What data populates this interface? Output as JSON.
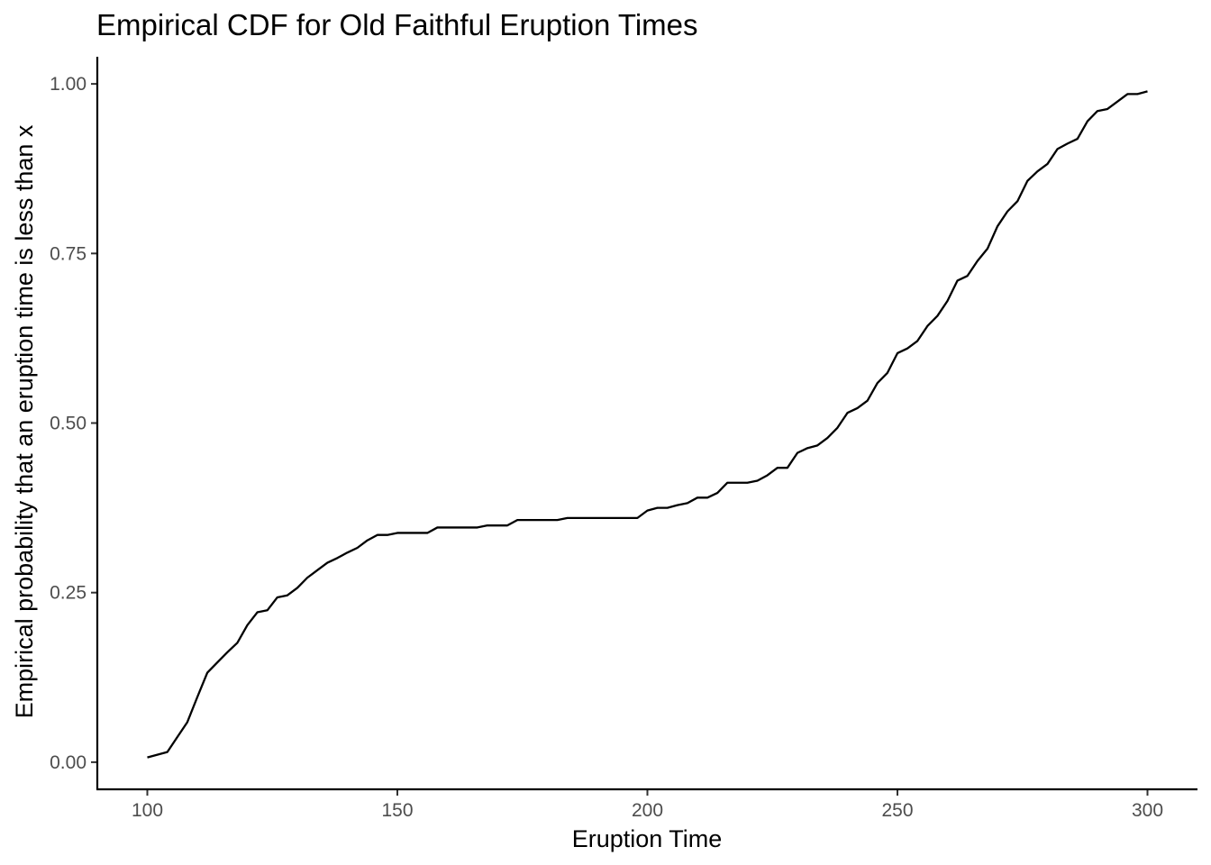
{
  "chart_data": {
    "type": "line",
    "title": "Empirical CDF for Old Faithful Eruption Times",
    "xlabel": "Eruption Time",
    "ylabel": "Empirical probability that an eruption time is less than x",
    "xlim": [
      90,
      310
    ],
    "ylim": [
      -0.04,
      1.04
    ],
    "x_ticks": [
      100,
      150,
      200,
      250,
      300
    ],
    "x_tick_labels": [
      "100",
      "150",
      "200",
      "250",
      "300"
    ],
    "y_ticks": [
      0,
      0.25,
      0.5,
      0.75,
      1
    ],
    "y_tick_labels": [
      "0.00",
      "0.25",
      "0.50",
      "0.75",
      "1.00"
    ],
    "grid": false,
    "line_color": "#000000",
    "series": [
      {
        "x": [
          100,
          104,
          106,
          108,
          110,
          112,
          114,
          116,
          118,
          120,
          122,
          124,
          126,
          128,
          130,
          132,
          134,
          136,
          138,
          140,
          142,
          144,
          146,
          148,
          150,
          152,
          154,
          156,
          158,
          160,
          162,
          164,
          166,
          168,
          170,
          172,
          174,
          176,
          178,
          180,
          182,
          184,
          186,
          188,
          190,
          192,
          194,
          196,
          198,
          200,
          202,
          204,
          206,
          208,
          210,
          212,
          214,
          216,
          218,
          220,
          222,
          224,
          226,
          228,
          230,
          232,
          234,
          236,
          238,
          240,
          242,
          244,
          246,
          248,
          250,
          252,
          254,
          256,
          258,
          260,
          262,
          264,
          266,
          268,
          270,
          272,
          274,
          276,
          278,
          280,
          282,
          284,
          286,
          288,
          290,
          292,
          294,
          296,
          298,
          300
        ],
        "y": [
          0.007,
          0.015,
          0.037,
          0.059,
          0.096,
          0.132,
          0.147,
          0.162,
          0.176,
          0.202,
          0.221,
          0.224,
          0.243,
          0.246,
          0.257,
          0.272,
          0.283,
          0.294,
          0.301,
          0.309,
          0.316,
          0.327,
          0.335,
          0.335,
          0.338,
          0.338,
          0.338,
          0.338,
          0.346,
          0.346,
          0.346,
          0.346,
          0.346,
          0.349,
          0.349,
          0.349,
          0.357,
          0.357,
          0.357,
          0.357,
          0.357,
          0.36,
          0.36,
          0.36,
          0.36,
          0.36,
          0.36,
          0.36,
          0.36,
          0.371,
          0.375,
          0.375,
          0.379,
          0.382,
          0.39,
          0.39,
          0.397,
          0.412,
          0.412,
          0.412,
          0.415,
          0.423,
          0.434,
          0.434,
          0.456,
          0.463,
          0.467,
          0.478,
          0.493,
          0.515,
          0.522,
          0.533,
          0.559,
          0.574,
          0.603,
          0.61,
          0.621,
          0.643,
          0.658,
          0.68,
          0.71,
          0.717,
          0.739,
          0.757,
          0.79,
          0.812,
          0.827,
          0.857,
          0.871,
          0.882,
          0.904,
          0.912,
          0.919,
          0.945,
          0.96,
          0.963,
          0.974,
          0.985,
          0.985,
          0.989
        ]
      }
    ]
  }
}
